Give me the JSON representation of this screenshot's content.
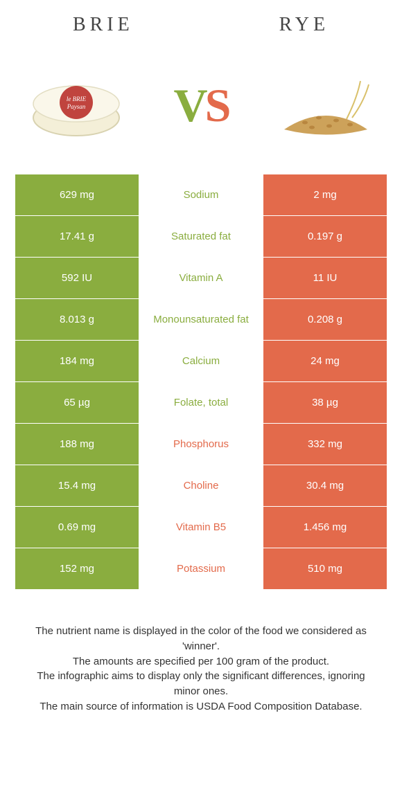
{
  "header": {
    "left": "BRIE",
    "right": "RYE"
  },
  "vs": {
    "v": "V",
    "s": "S"
  },
  "colors": {
    "left": "#8aad3f",
    "right": "#e36a4b",
    "mid_left_text": "#8aad3f",
    "mid_right_text": "#e36a4b"
  },
  "rows": [
    {
      "left": "629 mg",
      "mid": "Sodium",
      "right": "2 mg",
      "winner": "left"
    },
    {
      "left": "17.41 g",
      "mid": "Saturated fat",
      "right": "0.197 g",
      "winner": "left"
    },
    {
      "left": "592 IU",
      "mid": "Vitamin A",
      "right": "11 IU",
      "winner": "left"
    },
    {
      "left": "8.013 g",
      "mid": "Monounsaturated fat",
      "right": "0.208 g",
      "winner": "left"
    },
    {
      "left": "184 mg",
      "mid": "Calcium",
      "right": "24 mg",
      "winner": "left"
    },
    {
      "left": "65 µg",
      "mid": "Folate, total",
      "right": "38 µg",
      "winner": "left"
    },
    {
      "left": "188 mg",
      "mid": "Phosphorus",
      "right": "332 mg",
      "winner": "right"
    },
    {
      "left": "15.4 mg",
      "mid": "Choline",
      "right": "30.4 mg",
      "winner": "right"
    },
    {
      "left": "0.69 mg",
      "mid": "Vitamin B5",
      "right": "1.456 mg",
      "winner": "right"
    },
    {
      "left": "152 mg",
      "mid": "Potassium",
      "right": "510 mg",
      "winner": "right"
    }
  ],
  "footer": {
    "l1": "The nutrient name is displayed in the color of the food we considered as 'winner'.",
    "l2": "The amounts are specified per 100 gram of the product.",
    "l3": "The infographic aims to display only the significant differences, ignoring minor ones.",
    "l4": "The main source of information is USDA Food Composition Database."
  }
}
